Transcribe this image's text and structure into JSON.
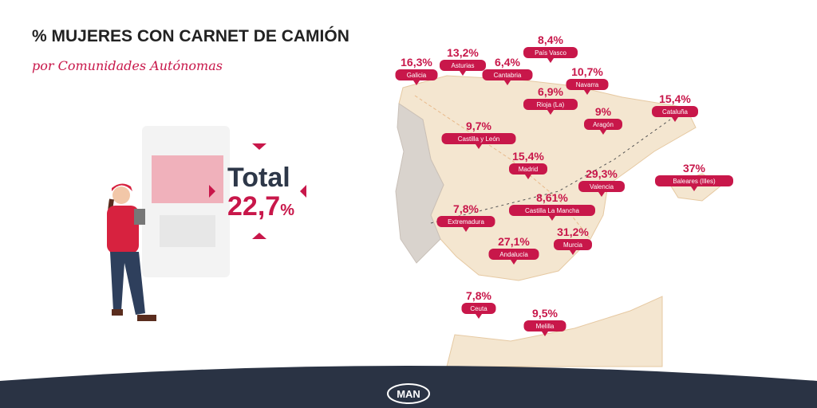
{
  "header": {
    "title": "% MUJERES CON CARNET DE CAMIÓN",
    "subtitle": "por Comunidades Autónomas"
  },
  "total": {
    "label": "Total",
    "value": "22,7",
    "unit": "%"
  },
  "regions": [
    {
      "name": "Galicia",
      "value": "16,3%"
    },
    {
      "name": "Asturias",
      "value": "13,2%"
    },
    {
      "name": "Cantabria",
      "value": "6,4%"
    },
    {
      "name": "País Vasco",
      "value": "8,4%"
    },
    {
      "name": "Navarra",
      "value": "10,7%"
    },
    {
      "name": "Rioja (La)",
      "value": "6,9%"
    },
    {
      "name": "Aragón",
      "value": "9%"
    },
    {
      "name": "Cataluña",
      "value": "15,4%"
    },
    {
      "name": "Castilla y León",
      "value": "9,7%"
    },
    {
      "name": "Madrid",
      "value": "15,4%"
    },
    {
      "name": "Baleares (Illes)",
      "value": "37%"
    },
    {
      "name": "Valencia",
      "value": "29,3%"
    },
    {
      "name": "Castilla La Mancha",
      "value": "8,61%"
    },
    {
      "name": "Extremadura",
      "value": "7,8%"
    },
    {
      "name": "Andalucía",
      "value": "27,1%"
    },
    {
      "name": "Murcia",
      "value": "31,2%"
    },
    {
      "name": "Ceuta",
      "value": "7,8%"
    },
    {
      "name": "Melilla",
      "value": "9,5%"
    }
  ],
  "footer": {
    "logo": "MAN"
  }
}
